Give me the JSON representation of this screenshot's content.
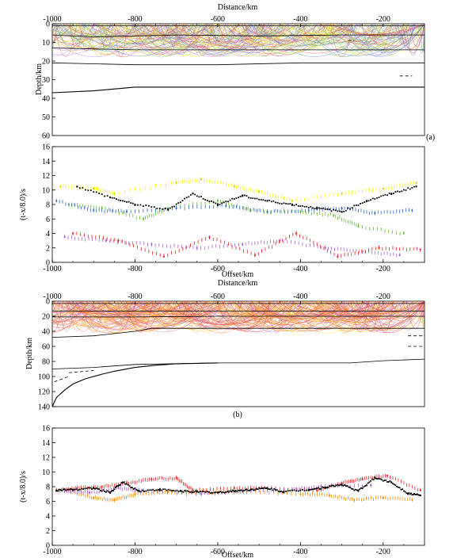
{
  "chart_data": [
    {
      "panel": "(a)",
      "type": "ray-diagram",
      "xlabel": "Distance/km",
      "ylabel": "Depth/km",
      "xlim": [
        -1000,
        -100
      ],
      "ylim": [
        0,
        60
      ],
      "x_ticks": [
        -1000,
        -800,
        -600,
        -400,
        -200
      ],
      "y_ticks": [
        0,
        10,
        20,
        30,
        40,
        50,
        60
      ],
      "interfaces": [
        {
          "x": [
            -1000,
            -100
          ],
          "y": [
            1,
            1
          ]
        },
        {
          "x": [
            -1000,
            -900,
            -700,
            -500,
            -300,
            -100
          ],
          "y": [
            6,
            7,
            6,
            6.5,
            6,
            6
          ]
        },
        {
          "x": [
            -1000,
            -800,
            -600,
            -400,
            -200,
            -100
          ],
          "y": [
            13,
            14,
            14,
            14,
            14,
            14
          ]
        },
        {
          "x": [
            -1000,
            -800,
            -600,
            -400,
            -200,
            -100
          ],
          "y": [
            21,
            22,
            22,
            21,
            21,
            21
          ]
        },
        {
          "x": [
            -1000,
            -900,
            -800,
            -700,
            -600,
            -400,
            -200,
            -100
          ],
          "y": [
            37,
            36,
            34,
            34,
            34,
            34,
            34,
            34
          ]
        }
      ],
      "dashed_segments": [
        {
          "x": [
            -160,
            -130
          ],
          "y": [
            28,
            28
          ]
        },
        {
          "x": [
            -285,
            -270
          ],
          "y": [
            9,
            9
          ]
        }
      ],
      "ray_colors": [
        "#ffff00",
        "#66bb33",
        "#3366cc",
        "#aa66cc",
        "#ee2222"
      ]
    },
    {
      "panel": "(a)",
      "type": "scatter",
      "xlabel": "Offset/km",
      "ylabel": "(t-x/8.0)/s",
      "xlim": [
        -1000,
        -100
      ],
      "ylim": [
        0,
        16
      ],
      "x_ticks": [
        -1000,
        -800,
        -600,
        -400,
        -200
      ],
      "y_ticks": [
        0,
        2,
        4,
        6,
        8,
        10,
        12,
        14,
        16
      ],
      "series": [
        {
          "color": "#ffff00",
          "x": [
            -980,
            -900,
            -850,
            -700,
            -640,
            -560,
            -500,
            -420,
            -300,
            -200,
            -120
          ],
          "y": [
            10.5,
            10.2,
            9.5,
            11,
            11.5,
            10.5,
            9.8,
            8.5,
            9.5,
            10.2,
            11
          ]
        },
        {
          "color": "#66bb33",
          "x": [
            -960,
            -880,
            -780,
            -720,
            -600,
            -520,
            -400,
            -320,
            -260,
            -150
          ],
          "y": [
            8,
            7.5,
            6,
            7.5,
            8.5,
            7.2,
            7,
            6.5,
            5,
            4
          ]
        },
        {
          "color": "#3366cc",
          "x": [
            -990,
            -900,
            -820,
            -700,
            -580,
            -480,
            -380,
            -300,
            -220,
            -130
          ],
          "y": [
            8.5,
            7.2,
            7,
            7.5,
            7.8,
            7,
            7.2,
            7.5,
            6.8,
            7.2
          ]
        },
        {
          "color": "#aa66cc",
          "x": [
            -970,
            -870,
            -760,
            -650,
            -540,
            -450,
            -340,
            -250,
            -160
          ],
          "y": [
            3.5,
            3,
            2.5,
            2,
            2.5,
            3,
            2,
            1.5,
            1
          ]
        },
        {
          "color": "#ee2222",
          "x": [
            -950,
            -840,
            -730,
            -620,
            -510,
            -410,
            -310,
            -210,
            -110
          ],
          "y": [
            4,
            3,
            0.8,
            3.5,
            1,
            4,
            0.8,
            2,
            1.8
          ]
        },
        {
          "color": "#000000",
          "x": [
            -940,
            -860,
            -800,
            -720,
            -660,
            -600,
            -540,
            -480,
            -420,
            -360,
            -300,
            -240,
            -180,
            -120
          ],
          "y": [
            10.5,
            9,
            8,
            7.3,
            9.5,
            8,
            9.2,
            8.5,
            8,
            7.5,
            7,
            8.5,
            9.5,
            10.5
          ]
        }
      ]
    },
    {
      "panel": "(b)",
      "type": "ray-diagram",
      "xlabel": "Distance/km",
      "ylabel": "Depth/km",
      "xlim": [
        -1000,
        -100
      ],
      "ylim": [
        0,
        140
      ],
      "x_ticks": [
        -1000,
        -800,
        -600,
        -400,
        -200
      ],
      "y_ticks": [
        0,
        20,
        40,
        60,
        80,
        100,
        120,
        140
      ],
      "interfaces": [
        {
          "x": [
            -1000,
            -100
          ],
          "y": [
            3,
            3
          ]
        },
        {
          "x": [
            -1000,
            -100
          ],
          "y": [
            13,
            13
          ]
        },
        {
          "x": [
            -1000,
            -800,
            -600,
            -400,
            -200,
            -100
          ],
          "y": [
            21,
            21,
            20,
            20,
            20,
            20
          ]
        },
        {
          "x": [
            -1000,
            -900,
            -800,
            -760,
            -600,
            -400,
            -200,
            -100
          ],
          "y": [
            48,
            46,
            40,
            36,
            36,
            36,
            36,
            36
          ]
        },
        {
          "x": [
            -1000,
            -900,
            -800,
            -600,
            -400,
            -280,
            -200,
            -100
          ],
          "y": [
            90,
            88,
            84,
            82,
            82,
            82,
            79,
            77
          ]
        },
        {
          "x": [
            -1000,
            -990,
            -970,
            -950,
            -920,
            -880,
            -850,
            -800,
            -750,
            -700,
            -600
          ],
          "y": [
            140,
            128,
            118,
            110,
            103,
            97,
            93,
            88,
            85,
            83,
            82
          ]
        }
      ],
      "dashed_segments": [
        {
          "x": [
            -995,
            -960
          ],
          "y": [
            107,
            100
          ]
        },
        {
          "x": [
            -960,
            -900
          ],
          "y": [
            95,
            92
          ]
        },
        {
          "x": [
            -140,
            -100
          ],
          "y": [
            46,
            46
          ]
        },
        {
          "x": [
            -140,
            -100
          ],
          "y": [
            60,
            60
          ]
        }
      ],
      "ray_colors": [
        "#ee1111",
        "#ff6633",
        "#ff8800",
        "#aa55cc",
        "#ffcc00"
      ]
    },
    {
      "panel": "(b)",
      "type": "scatter",
      "xlabel": "Offset/km",
      "ylabel": "(t-x/8.0)/s",
      "xlim": [
        -1000,
        -100
      ],
      "ylim": [
        0,
        16
      ],
      "x_ticks": [
        -1000,
        -800,
        -600,
        -400,
        -200
      ],
      "y_ticks": [
        0,
        2,
        4,
        6,
        8,
        10,
        12,
        14,
        16
      ],
      "series": [
        {
          "color": "#ee2222",
          "x": [
            -990,
            -940,
            -880,
            -820,
            -760,
            -700,
            -660,
            -560,
            -480,
            -360,
            -300,
            -250,
            -190,
            -110
          ],
          "y": [
            7.5,
            7.8,
            8,
            8.5,
            9,
            9.2,
            7.5,
            7.8,
            7.8,
            7.5,
            8.5,
            9,
            9.5,
            7.5
          ]
        },
        {
          "color": "#ff8800",
          "x": [
            -960,
            -900,
            -850,
            -800,
            -720,
            -620,
            -530,
            -400,
            -330,
            -270,
            -200,
            -130
          ],
          "y": [
            7.5,
            6.5,
            6.2,
            7,
            7.3,
            7.2,
            7.3,
            7,
            6.8,
            6.2,
            6.5,
            6.2
          ]
        },
        {
          "color": "#aa55cc",
          "x": [
            -970,
            -910,
            -840,
            -780,
            -640,
            -540,
            -420,
            -350,
            -230
          ],
          "y": [
            7.4,
            7.2,
            7.8,
            7.5,
            7,
            7.5,
            7.6,
            8,
            8.2
          ]
        },
        {
          "color": "#000000",
          "x": [
            -990,
            -950,
            -900,
            -860,
            -830,
            -790,
            -740,
            -690,
            -650,
            -600,
            -560,
            -520,
            -480,
            -440,
            -380,
            -340,
            -300,
            -260,
            -220,
            -180,
            -140,
            -110
          ],
          "y": [
            7.5,
            7.6,
            7.8,
            7.2,
            8.6,
            7.4,
            7.6,
            7.4,
            7.3,
            7.2,
            7.4,
            7.6,
            7.8,
            7.3,
            7.6,
            7.9,
            8.3,
            7.4,
            9.2,
            8.6,
            7.1,
            6.8
          ]
        }
      ]
    }
  ]
}
